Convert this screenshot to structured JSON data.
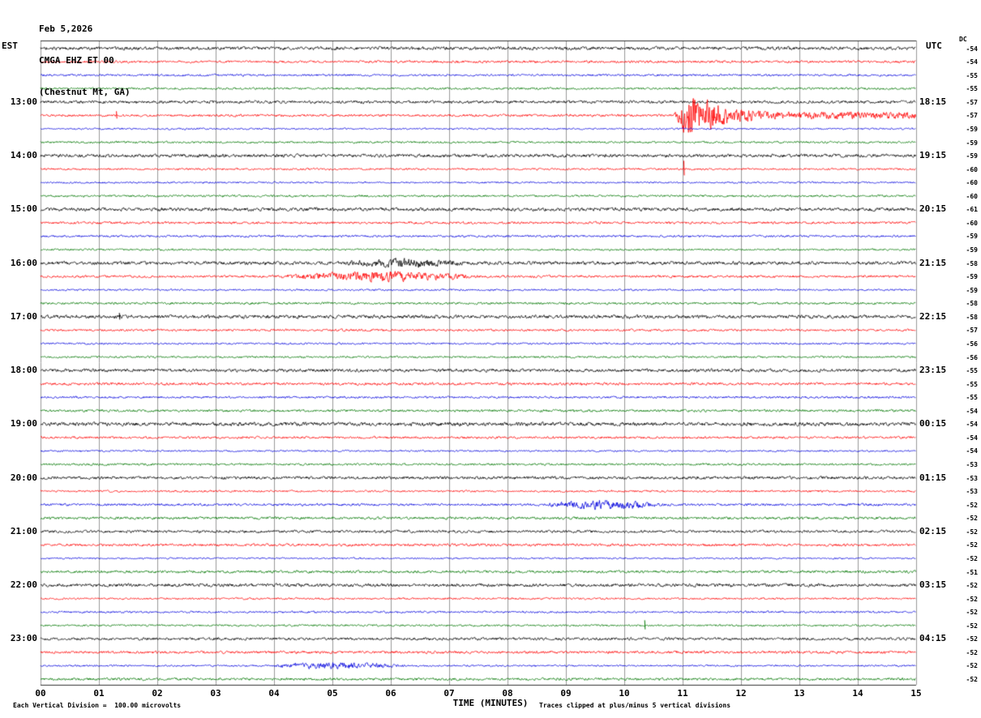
{
  "header": {
    "date": "Feb 5,2026",
    "station": "CMGA EHZ ET 00",
    "location": "(Chestnut Mt, GA)"
  },
  "footer": {
    "scale_note": "Each Vertical Division =  100.00 microvolts",
    "clip_note": "Traces clipped at plus/minus 5 vertical divisions"
  },
  "chart_data": {
    "type": "line",
    "variant": "helicorder-seismogram",
    "station": "CMGA",
    "channel": "EHZ ET 00",
    "station_name": "Chestnut Mt, GA",
    "date": "Feb 5,2026",
    "x_label": "TIME (MINUTES)",
    "x_ticks": [
      "00",
      "01",
      "02",
      "03",
      "04",
      "05",
      "06",
      "07",
      "08",
      "09",
      "10",
      "11",
      "12",
      "13",
      "14",
      "15"
    ],
    "x_range_minutes": [
      0,
      15
    ],
    "rows": 48,
    "minutes_per_row": 15,
    "first_row_start_est": "12:00",
    "left_header": "EST",
    "right_header": "UTC",
    "dc_header": "DC",
    "microvolts_per_division": "100.00",
    "clip_divisions": 5,
    "trace_color_cycle": [
      "#000000",
      "#ff0000",
      "#0000dd",
      "#007700"
    ],
    "grid_color": "#999999",
    "left_time_labels": [
      {
        "row": 4,
        "text": "13:00"
      },
      {
        "row": 8,
        "text": "14:00"
      },
      {
        "row": 12,
        "text": "15:00"
      },
      {
        "row": 16,
        "text": "16:00"
      },
      {
        "row": 20,
        "text": "17:00"
      },
      {
        "row": 24,
        "text": "18:00"
      },
      {
        "row": 28,
        "text": "19:00"
      },
      {
        "row": 32,
        "text": "20:00"
      },
      {
        "row": 36,
        "text": "21:00"
      },
      {
        "row": 40,
        "text": "22:00"
      },
      {
        "row": 44,
        "text": "23:00"
      }
    ],
    "right_time_labels": [
      {
        "row": 4,
        "text": "18:15"
      },
      {
        "row": 8,
        "text": "19:15"
      },
      {
        "row": 12,
        "text": "20:15"
      },
      {
        "row": 16,
        "text": "21:15"
      },
      {
        "row": 20,
        "text": "22:15"
      },
      {
        "row": 24,
        "text": "23:15"
      },
      {
        "row": 28,
        "text": "00:15"
      },
      {
        "row": 32,
        "text": "01:15"
      },
      {
        "row": 36,
        "text": "02:15"
      },
      {
        "row": 40,
        "text": "03:15"
      },
      {
        "row": 44,
        "text": "04:15"
      }
    ],
    "dc_values": [
      -54,
      -54,
      -55,
      -55,
      -57,
      -57,
      -59,
      -59,
      -59,
      -60,
      -60,
      -60,
      -61,
      -60,
      -59,
      -59,
      -58,
      -59,
      -59,
      -58,
      -58,
      -57,
      -56,
      -56,
      -55,
      -55,
      -55,
      -54,
      -54,
      -54,
      -54,
      -53,
      -53,
      -53,
      -52,
      -52,
      -52,
      -52,
      -52,
      -51,
      -52,
      -52,
      -52,
      -52,
      -52,
      -52,
      -52,
      -52
    ],
    "events": [
      {
        "row": 5,
        "type": "burst",
        "start_min": 10.85,
        "peak_min": 11.08,
        "end_min": 15,
        "peak_amp_divisions": 5,
        "tail_divisions": 0.55
      },
      {
        "row": 5,
        "type": "spike",
        "min": 1.3,
        "amp_divisions": 1.2
      },
      {
        "row": 9,
        "type": "spike",
        "min": 11.02,
        "amp_divisions": 2.4
      },
      {
        "row": 16,
        "type": "fuzz",
        "start_min": 5.2,
        "end_min": 7.3,
        "amp_divisions": 0.7
      },
      {
        "row": 17,
        "type": "fuzz",
        "start_min": 3.9,
        "end_min": 7.6,
        "amp_divisions": 0.9
      },
      {
        "row": 20,
        "type": "spike",
        "min": 1.35,
        "amp_divisions": 1.1
      },
      {
        "row": 34,
        "type": "fuzz",
        "start_min": 8.6,
        "end_min": 10.7,
        "amp_divisions": 0.8
      },
      {
        "row": 43,
        "type": "spike",
        "min": 10.35,
        "amp_divisions": 1.5
      },
      {
        "row": 46,
        "type": "fuzz",
        "start_min": 3.9,
        "end_min": 6.3,
        "amp_divisions": 0.6
      }
    ]
  }
}
